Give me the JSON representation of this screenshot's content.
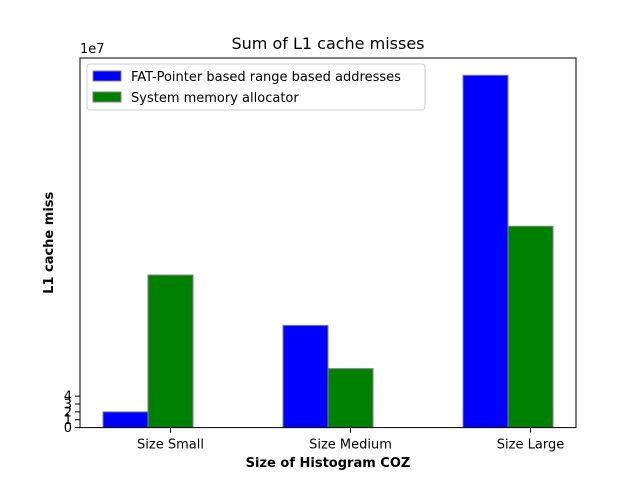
{
  "chart_data": {
    "type": "bar",
    "title": "Sum of L1 cache misses",
    "xlabel": "Size of Histogram COZ",
    "ylabel": "L1 cache miss",
    "y_multiplier_label": "1e7",
    "categories": [
      "Size Small",
      "Size Medium",
      "Size Large"
    ],
    "series": [
      {
        "name": "FAT-Pointer based range based addresses",
        "color": "#0000ff",
        "values": [
          2.0,
          13.0,
          44.8
        ]
      },
      {
        "name": "System memory allocator",
        "color": "#008000",
        "values": [
          19.4,
          7.5,
          25.6
        ]
      }
    ],
    "yticks": [
      0,
      1,
      2,
      3,
      4
    ],
    "ylim": [
      0,
      47
    ],
    "ylim_units": "1e7",
    "grid": false,
    "legend_position": "top-left"
  }
}
